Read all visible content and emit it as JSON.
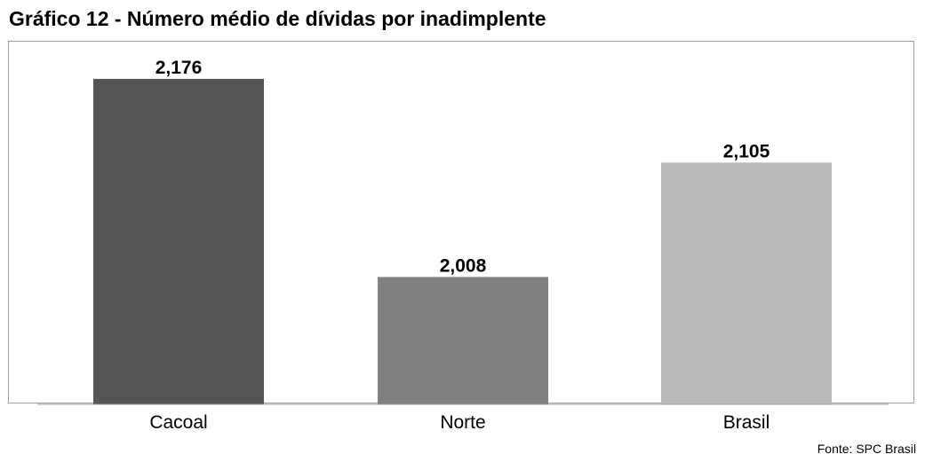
{
  "page": {
    "title": "Gráfico 12 - Número médio de dívidas por inadimplente",
    "source": "Fonte: SPC Brasil"
  },
  "chart_data": {
    "type": "bar",
    "title": "Gráfico 12 - Número médio de dívidas por inadimplente",
    "xlabel": "",
    "ylabel": "",
    "categories": [
      "Cacoal",
      "Norte",
      "Brasil"
    ],
    "values": [
      2.176,
      2.008,
      2.105
    ],
    "value_labels": [
      "2,176",
      "2,008",
      "2,105"
    ],
    "colors": [
      "#555555",
      "#808080",
      "#b9b9b9"
    ],
    "ylim": [
      1.9,
      2.2
    ],
    "grid": false,
    "legend": "none"
  }
}
